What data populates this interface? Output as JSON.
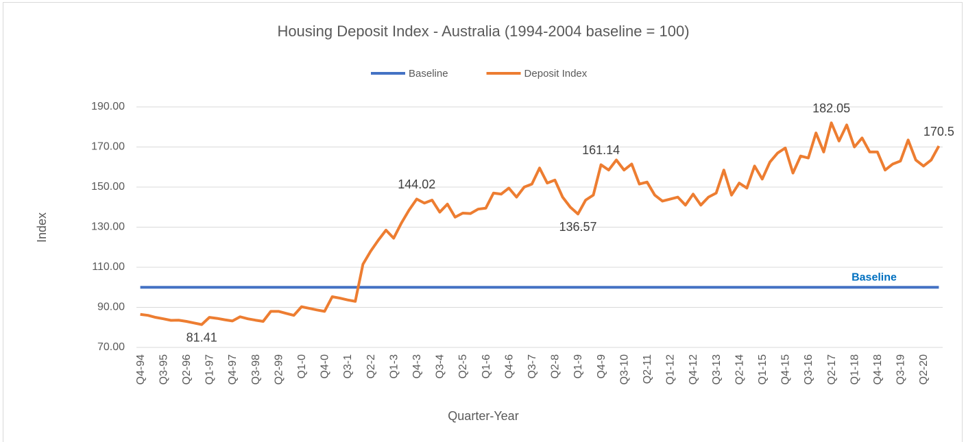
{
  "chart_data": {
    "type": "line",
    "title": "Housing Deposit Index - Australia (1994-2004 baseline = 100)",
    "x_label": "Quarter-Year",
    "y_label": "Index",
    "baseline_label": "Baseline",
    "categories": [
      "Q4-94",
      null,
      null,
      "Q3-95",
      null,
      null,
      "Q2-96",
      null,
      null,
      "Q1-97",
      null,
      null,
      "Q4-97",
      null,
      null,
      "Q3-98",
      null,
      null,
      "Q2-99",
      null,
      null,
      "Q1-0",
      null,
      null,
      "Q4-0",
      null,
      null,
      "Q3-1",
      null,
      null,
      "Q2-2",
      null,
      null,
      "Q1-3",
      null,
      null,
      "Q4-3",
      null,
      null,
      "Q3-4",
      null,
      null,
      "Q2-5",
      null,
      null,
      "Q1-6",
      null,
      null,
      "Q4-6",
      null,
      null,
      "Q3-7",
      null,
      null,
      "Q2-8",
      null,
      null,
      "Q1-9",
      null,
      null,
      "Q4-9",
      null,
      null,
      "Q3-10",
      null,
      null,
      "Q2-11",
      null,
      null,
      "Q1-12",
      null,
      null,
      "Q4-12",
      null,
      null,
      "Q3-13",
      null,
      null,
      "Q2-14",
      null,
      null,
      "Q1-15",
      null,
      null,
      "Q4-15",
      null,
      null,
      "Q3-16",
      null,
      null,
      "Q2-17",
      null,
      null,
      "Q1-18",
      null,
      null,
      "Q4-18",
      null,
      null,
      "Q3-19",
      null,
      null,
      "Q2-20",
      null,
      null
    ],
    "series": [
      {
        "name": "Baseline",
        "color": "#4472c4",
        "values": [
          100,
          100,
          100,
          100,
          100,
          100,
          100,
          100,
          100,
          100,
          100,
          100,
          100,
          100,
          100,
          100,
          100,
          100,
          100,
          100,
          100,
          100,
          100,
          100,
          100,
          100,
          100,
          100,
          100,
          100,
          100,
          100,
          100,
          100,
          100,
          100,
          100,
          100,
          100,
          100,
          100,
          100,
          100,
          100,
          100,
          100,
          100,
          100,
          100,
          100,
          100,
          100,
          100,
          100,
          100,
          100,
          100,
          100,
          100,
          100,
          100,
          100,
          100,
          100,
          100,
          100,
          100,
          100,
          100,
          100,
          100,
          100,
          100,
          100,
          100,
          100,
          100,
          100,
          100,
          100,
          100,
          100,
          100,
          100,
          100,
          100,
          100,
          100,
          100,
          100,
          100,
          100,
          100,
          100,
          100,
          100,
          100,
          100,
          100,
          100,
          100,
          100,
          100,
          100,
          100
        ]
      },
      {
        "name": "Deposit Index",
        "color": "#ed7d31",
        "values": [
          86.5,
          86,
          85,
          84.3,
          83.5,
          83.6,
          83,
          82.2,
          81.41,
          85,
          84.5,
          83.8,
          83.2,
          85.3,
          84.3,
          83.6,
          83,
          88,
          88,
          87,
          86,
          90.3,
          89.5,
          88.7,
          88,
          95.3,
          94.6,
          93.7,
          93,
          111.5,
          118,
          123.5,
          128.5,
          124.5,
          132,
          138.5,
          144.02,
          142,
          143.5,
          137.5,
          141.5,
          135,
          137,
          136.8,
          139,
          139.5,
          147,
          146.5,
          149.5,
          145,
          150,
          151.5,
          159.5,
          152,
          153.5,
          145,
          140,
          136.57,
          143.5,
          146,
          161.14,
          158.5,
          163.5,
          158.5,
          161.5,
          151.5,
          152.5,
          146,
          143,
          144,
          145,
          141,
          146.5,
          141,
          145,
          147,
          158.5,
          146,
          152,
          149.5,
          160.5,
          154,
          162.5,
          167,
          169.5,
          157,
          165.5,
          164.5,
          177,
          167.5,
          182.05,
          173,
          181,
          170,
          174.5,
          167.5,
          167.5,
          158.5,
          161.5,
          163,
          173.5,
          163.5,
          160.5,
          163.5,
          170.5
        ],
        "value_labels": [
          null,
          null,
          null,
          null,
          null,
          null,
          null,
          null,
          "81.41",
          null,
          null,
          null,
          null,
          null,
          null,
          null,
          null,
          null,
          null,
          null,
          null,
          null,
          null,
          null,
          null,
          null,
          null,
          null,
          null,
          null,
          null,
          null,
          null,
          null,
          null,
          null,
          "144.02",
          null,
          null,
          null,
          null,
          null,
          null,
          null,
          null,
          null,
          null,
          null,
          null,
          null,
          null,
          null,
          null,
          null,
          null,
          null,
          null,
          "136.57",
          null,
          null,
          "161.14",
          null,
          null,
          null,
          null,
          null,
          null,
          null,
          null,
          null,
          null,
          null,
          null,
          null,
          null,
          null,
          null,
          null,
          null,
          null,
          null,
          null,
          null,
          null,
          null,
          null,
          null,
          null,
          null,
          null,
          "182.05",
          null,
          null,
          null,
          null,
          null,
          null,
          null,
          null,
          null,
          null,
          null,
          null,
          null,
          "170.5"
        ]
      }
    ],
    "ylim": [
      70,
      190
    ],
    "yticks": [
      {
        "value": 70,
        "label": "70.00"
      },
      {
        "value": 90,
        "label": "90.00"
      },
      {
        "value": 110,
        "label": "110.00"
      },
      {
        "value": 130,
        "label": "130.00"
      },
      {
        "value": 150,
        "label": "150.00"
      },
      {
        "value": 170,
        "label": "170.00"
      },
      {
        "value": 190,
        "label": "190.00"
      }
    ],
    "grid": true,
    "legend": "top"
  }
}
